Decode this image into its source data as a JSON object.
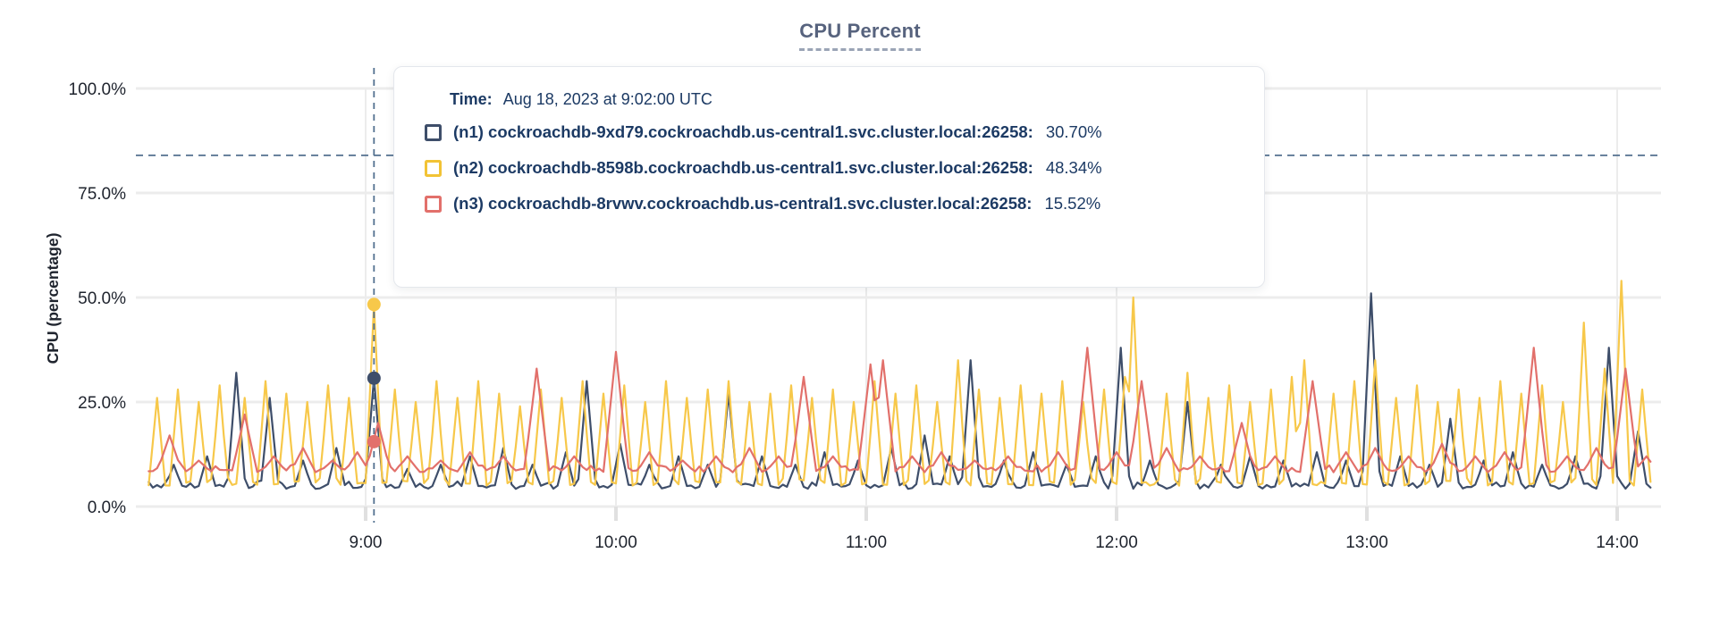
{
  "title": "CPU Percent",
  "y_axis_title": "CPU (percentage)",
  "tooltip": {
    "time_label": "Time:",
    "time_value": "Aug 18, 2023 at 9:02:00 UTC",
    "rows": [
      {
        "label": "(n1) cockroachdb-9xd79.cockroachdb.us-central1.svc.cluster.local:26258:",
        "value": "30.70%",
        "color": "#3E4E6A"
      },
      {
        "label": "(n2) cockroachdb-8598b.cockroachdb.us-central1.svc.cluster.local:26258:",
        "value": "48.34%",
        "color": "#F2C335"
      },
      {
        "label": "(n3) cockroachdb-8rvwv.cockroachdb.us-central1.svc.cluster.local:26258:",
        "value": "15.52%",
        "color": "#E2706B"
      }
    ]
  },
  "colors": {
    "grid": "#ececec",
    "tick": "#e0e0e0",
    "threshold_dash": "#53708F",
    "hover_dash": "#53708F",
    "axis_text": "#1f242e",
    "title_text": "#57637E",
    "tooltip_text": "#1C3A64",
    "n1_line": "#3E4E6A",
    "n2_line": "#F7C84A",
    "n3_line": "#E2706B"
  },
  "chart_data": {
    "type": "line",
    "title": "CPU Percent",
    "ylabel": "CPU (percentage)",
    "ylim": [
      0,
      100
    ],
    "grid": true,
    "x_unit": "minutes since 08:00 UTC, Aug 18 2023",
    "t_start": 8,
    "t_end": 368,
    "y_ticks": [
      {
        "value": 100,
        "label": "100.0%"
      },
      {
        "value": 75,
        "label": "75.0%"
      },
      {
        "value": 50,
        "label": "50.0%"
      },
      {
        "value": 25,
        "label": "25.0%"
      },
      {
        "value": 0,
        "label": "0.0%"
      }
    ],
    "x_ticks": [
      {
        "t": 60,
        "label": "9:00"
      },
      {
        "t": 120,
        "label": "10:00"
      },
      {
        "t": 180,
        "label": "11:00"
      },
      {
        "t": 240,
        "label": "12:00"
      },
      {
        "t": 300,
        "label": "13:00"
      },
      {
        "t": 360,
        "label": "14:00"
      }
    ],
    "threshold_pct": 84,
    "hover": {
      "t": 62,
      "time": "Aug 18, 2023 at 9:02:00 UTC"
    },
    "series": [
      {
        "name": "(n1) cockroachdb-9xd79.cockroachdb.us-central1.svc.cluster.local:26258",
        "color": "#3E4E6A",
        "baseline": 4.2,
        "spike_halfwidth": 2.2,
        "hover_value": 30.7,
        "spikes": [
          [
            14,
            10
          ],
          [
            22,
            12
          ],
          [
            29,
            32
          ],
          [
            37,
            26
          ],
          [
            45,
            11
          ],
          [
            53,
            14
          ],
          [
            62,
            30.7
          ],
          [
            70,
            9
          ],
          [
            78,
            10
          ],
          [
            85,
            12
          ],
          [
            93,
            14
          ],
          [
            100,
            10
          ],
          [
            108,
            13
          ],
          [
            113,
            30
          ],
          [
            121,
            15
          ],
          [
            128,
            10
          ],
          [
            135,
            12
          ],
          [
            142,
            10
          ],
          [
            147,
            27
          ],
          [
            155,
            12
          ],
          [
            163,
            10
          ],
          [
            170,
            13
          ],
          [
            178,
            11
          ],
          [
            186,
            14
          ],
          [
            194,
            17
          ],
          [
            200,
            12
          ],
          [
            205,
            35
          ],
          [
            213,
            11
          ],
          [
            220,
            13
          ],
          [
            228,
            10
          ],
          [
            235,
            12
          ],
          [
            241,
            38
          ],
          [
            248,
            11
          ],
          [
            257,
            25
          ],
          [
            265,
            10
          ],
          [
            272,
            12
          ],
          [
            280,
            11
          ],
          [
            288,
            13
          ],
          [
            295,
            11
          ],
          [
            301,
            51
          ],
          [
            308,
            12
          ],
          [
            315,
            10
          ],
          [
            320,
            21
          ],
          [
            328,
            11
          ],
          [
            335,
            13
          ],
          [
            342,
            10
          ],
          [
            350,
            12
          ],
          [
            358,
            38
          ],
          [
            365,
            18
          ]
        ]
      },
      {
        "name": "(n2) cockroachdb-8598b.cockroachdb.us-central1.svc.cluster.local:26258",
        "color": "#F7C84A",
        "baseline": 5.0,
        "spike_halfwidth": 2.0,
        "hover_value": 48.34,
        "spikes": [
          [
            10,
            26
          ],
          [
            15,
            28
          ],
          [
            20,
            25
          ],
          [
            25,
            29
          ],
          [
            31,
            26
          ],
          [
            36,
            30
          ],
          [
            41,
            27
          ],
          [
            46,
            25
          ],
          [
            51,
            29
          ],
          [
            56,
            26
          ],
          [
            62,
            48.34
          ],
          [
            67,
            28
          ],
          [
            72,
            25
          ],
          [
            77,
            30
          ],
          [
            82,
            26
          ],
          [
            87,
            30
          ],
          [
            92,
            27
          ],
          [
            97,
            24
          ],
          [
            102,
            28
          ],
          [
            107,
            26
          ],
          [
            112,
            30
          ],
          [
            117,
            27
          ],
          [
            122,
            29
          ],
          [
            127,
            25
          ],
          [
            132,
            30
          ],
          [
            137,
            26
          ],
          [
            142,
            28
          ],
          [
            147,
            30
          ],
          [
            152,
            25
          ],
          [
            157,
            27
          ],
          [
            162,
            29
          ],
          [
            167,
            26
          ],
          [
            172,
            28
          ],
          [
            177,
            25
          ],
          [
            182,
            30
          ],
          [
            187,
            27
          ],
          [
            192,
            29
          ],
          [
            197,
            25
          ],
          [
            202,
            35
          ],
          [
            207,
            28
          ],
          [
            212,
            26
          ],
          [
            217,
            29
          ],
          [
            222,
            27
          ],
          [
            227,
            30
          ],
          [
            232,
            25
          ],
          [
            237,
            28
          ],
          [
            242,
            31
          ],
          [
            244,
            50
          ],
          [
            252,
            27
          ],
          [
            257,
            32
          ],
          [
            262,
            26
          ],
          [
            267,
            29
          ],
          [
            272,
            25
          ],
          [
            277,
            28
          ],
          [
            282,
            31
          ],
          [
            285,
            35
          ],
          [
            292,
            27
          ],
          [
            297,
            30
          ],
          [
            302,
            35
          ],
          [
            307,
            26
          ],
          [
            312,
            29
          ],
          [
            317,
            25
          ],
          [
            322,
            28
          ],
          [
            327,
            26
          ],
          [
            332,
            30
          ],
          [
            337,
            27
          ],
          [
            342,
            29
          ],
          [
            347,
            25
          ],
          [
            352,
            44
          ],
          [
            357,
            33
          ],
          [
            361,
            54
          ],
          [
            366,
            28
          ]
        ]
      },
      {
        "name": "(n3) cockroachdb-8rvwv.cockroachdb.us-central1.svc.cluster.local:26258",
        "color": "#E2706B",
        "baseline": 8.2,
        "spike_halfwidth": 3.0,
        "hover_value": 15.52,
        "spikes": [
          [
            13,
            17
          ],
          [
            20,
            11
          ],
          [
            31,
            22
          ],
          [
            38,
            12
          ],
          [
            45,
            14
          ],
          [
            52,
            11
          ],
          [
            58,
            13
          ],
          [
            63,
            20
          ],
          [
            70,
            12
          ],
          [
            78,
            11
          ],
          [
            85,
            13
          ],
          [
            93,
            12
          ],
          [
            101,
            33
          ],
          [
            110,
            12
          ],
          [
            120,
            37
          ],
          [
            128,
            13
          ],
          [
            136,
            11
          ],
          [
            144,
            12
          ],
          [
            152,
            14
          ],
          [
            159,
            12
          ],
          [
            165,
            31
          ],
          [
            172,
            12
          ],
          [
            181,
            34
          ],
          [
            184,
            35
          ],
          [
            191,
            12
          ],
          [
            198,
            13
          ],
          [
            206,
            11
          ],
          [
            214,
            12
          ],
          [
            226,
            13
          ],
          [
            233,
            38
          ],
          [
            240,
            13
          ],
          [
            246,
            30
          ],
          [
            252,
            14
          ],
          [
            260,
            12
          ],
          [
            270,
            20
          ],
          [
            278,
            12
          ],
          [
            287,
            30
          ],
          [
            295,
            13
          ],
          [
            302,
            14
          ],
          [
            310,
            12
          ],
          [
            318,
            15
          ],
          [
            326,
            12
          ],
          [
            333,
            13
          ],
          [
            340,
            38
          ],
          [
            348,
            12
          ],
          [
            355,
            14
          ],
          [
            362,
            33
          ],
          [
            367,
            12
          ]
        ]
      }
    ]
  }
}
